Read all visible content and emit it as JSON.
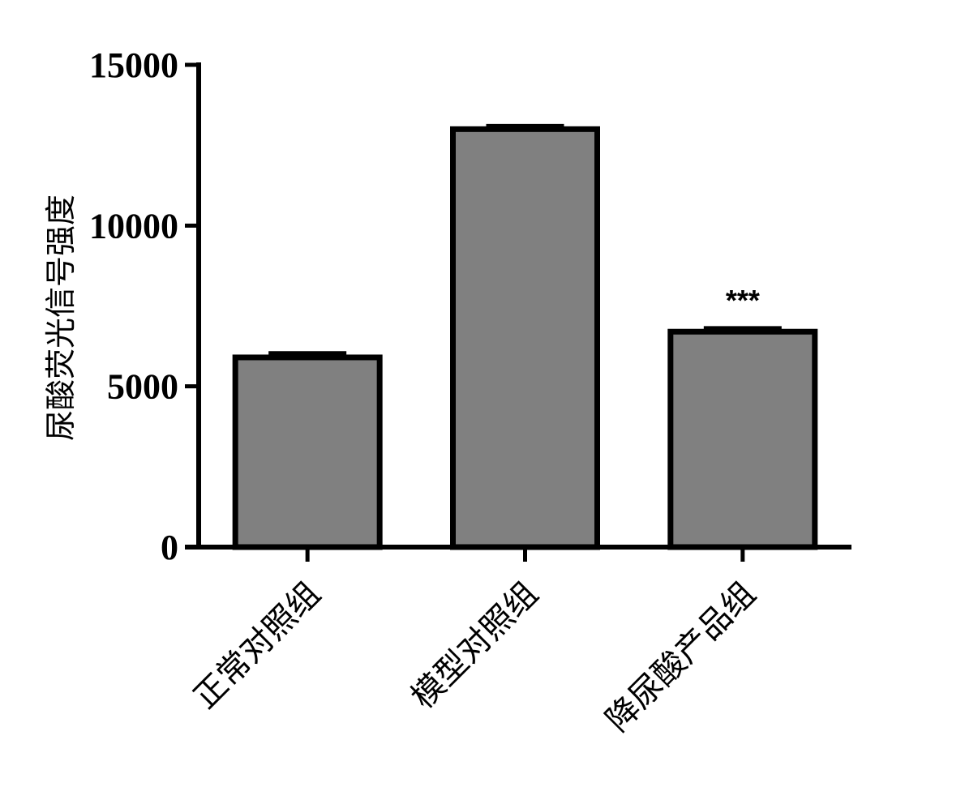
{
  "chart_data": {
    "type": "bar",
    "title": "",
    "xlabel": "",
    "ylabel": "尿酸荧光信号强度",
    "categories": [
      "正常对照组",
      "模型对照组",
      "降尿酸产品组"
    ],
    "values": [
      5900,
      13000,
      6700
    ],
    "errors": [
      130,
      100,
      110
    ],
    "annotations": [
      "",
      "",
      "***"
    ],
    "ylim": [
      0,
      15000
    ],
    "yticks": [
      0,
      5000,
      10000,
      15000
    ],
    "ytick_labels": [
      "0",
      "5000",
      "10000",
      "15000"
    ],
    "grid": false,
    "legend": "none",
    "bar_color": "#808080",
    "edge_color": "#000000"
  }
}
